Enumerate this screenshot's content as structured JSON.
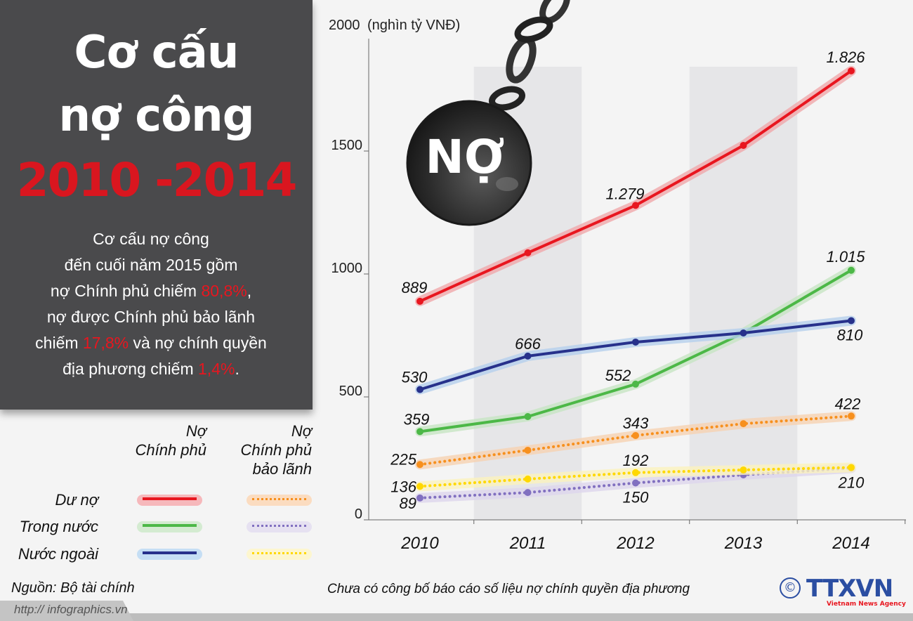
{
  "title": {
    "line1": "Cơ cấu",
    "line2": "nợ công",
    "years": "2010 -2014"
  },
  "description": {
    "l1": "Cơ cấu nợ công",
    "l2": "đến cuối năm 2015 gồm",
    "l3a": "nợ Chính phủ chiếm ",
    "l3b": "80,8%",
    "l3c": ",",
    "l4": "nợ được Chính phủ bảo lãnh",
    "l5a": "chiếm ",
    "l5b": "17,8%",
    "l5c": " và nợ chính quyền",
    "l6a": "địa phương chiếm ",
    "l6b": "1,4%",
    "l6c": "."
  },
  "legend": {
    "col1_l1": "Nợ",
    "col1_l2": "Chính phủ",
    "col2_l1": "Nợ",
    "col2_l2": "Chính phủ",
    "col2_l3": "bảo lãnh",
    "rows": [
      "Dư nợ",
      "Trong nước",
      "Nước ngoài"
    ]
  },
  "ball_label": "NỢ",
  "source": "Nguồn: Bộ tài chính",
  "url": "http:// infographics.vn",
  "note": "Chưa có công bố báo cáo số liệu nợ chính quyền địa phương",
  "logo": {
    "copyright": "©",
    "brand": "TTXVN",
    "tagline": "Vietnam News Agency"
  },
  "chart_data": {
    "type": "line",
    "ylabel": "(nghìn tỷ VNĐ)",
    "ylim": [
      0,
      2000
    ],
    "yticks": [
      0,
      500,
      1000,
      1500,
      2000
    ],
    "categories": [
      "2010",
      "2011",
      "2012",
      "2013",
      "2014"
    ],
    "grid": false,
    "series": [
      {
        "name": "Nợ Chính phủ - Dư nợ",
        "color": "#e8161f",
        "halo": "#f0a7aa",
        "dotted": false,
        "values": [
          889,
          1086,
          1279,
          1523,
          1826
        ],
        "labels": [
          "889",
          null,
          "1.279",
          null,
          "1.826"
        ]
      },
      {
        "name": "Nợ Chính phủ - Nước ngoài",
        "color": "#27318b",
        "halo": "#b5d0ec",
        "dotted": false,
        "values": [
          530,
          666,
          723,
          760,
          810
        ],
        "labels": [
          "530",
          "666",
          null,
          null,
          "810"
        ]
      },
      {
        "name": "Nợ Chính phủ - Trong nước",
        "color": "#4cb847",
        "halo": "#c7e5c3",
        "dotted": false,
        "values": [
          359,
          420,
          552,
          760,
          1015
        ],
        "labels": [
          "359",
          null,
          "552",
          null,
          "1.015"
        ]
      },
      {
        "name": "Nợ Chính phủ bảo lãnh - Dư nợ",
        "color": "#f7901e",
        "halo": "#f6d2b2",
        "dotted": true,
        "values": [
          225,
          283,
          343,
          391,
          422
        ],
        "labels": [
          "225",
          null,
          "343",
          null,
          "422"
        ]
      },
      {
        "name": "Nợ Chính phủ bảo lãnh - Nước ngoài",
        "color": "#ffd800",
        "halo": "#fbf2bd",
        "dotted": true,
        "values": [
          136,
          166,
          192,
          203,
          213
        ],
        "labels": [
          "136",
          null,
          "192",
          null,
          null
        ]
      },
      {
        "name": "Nợ Chính phủ bảo lãnh - Trong nước",
        "color": "#8170c0",
        "halo": "#ddd6ec",
        "dotted": true,
        "values": [
          89,
          111,
          150,
          183,
          210
        ],
        "labels": [
          "89",
          null,
          "150",
          null,
          "210"
        ]
      }
    ]
  }
}
